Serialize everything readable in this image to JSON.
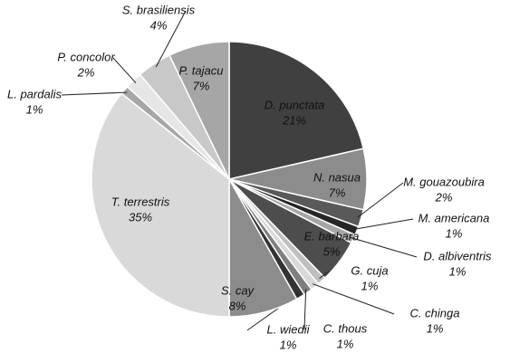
{
  "chart_data": {
    "type": "pie",
    "categories": [
      "D. punctata",
      "N. nasua",
      "M. gouazoubira",
      "M. americana",
      "D. albiventris",
      "E. barbara",
      "G. cuja",
      "C. chinga",
      "C. thous",
      "L. wiedii",
      "S. cay",
      "T. terrestris",
      "L. pardalis",
      "P. concolor",
      "S. brasiliensis",
      "P. tajacu"
    ],
    "values": [
      21,
      7,
      2,
      1,
      1,
      5,
      1,
      1,
      1,
      1,
      8,
      35,
      1,
      2,
      4,
      7
    ],
    "value_labels": [
      "21%",
      "7%",
      "2%",
      "1%",
      "1%",
      "5%",
      "1%",
      "1%",
      "1%",
      "1%",
      "8%",
      "35%",
      "1%",
      "2%",
      "4%",
      "7%"
    ],
    "colors": [
      "#404040",
      "#8c8c8c",
      "#595959",
      "#262626",
      "#a6a6a6",
      "#4d4d4d",
      "#bfbfbf",
      "#d9d9d9",
      "#7f7f7f",
      "#333333",
      "#8c8c8c",
      "#d9d9d9",
      "#a6a6a6",
      "#e6e6e6",
      "#c8c8c8",
      "#a6a6a6"
    ]
  }
}
